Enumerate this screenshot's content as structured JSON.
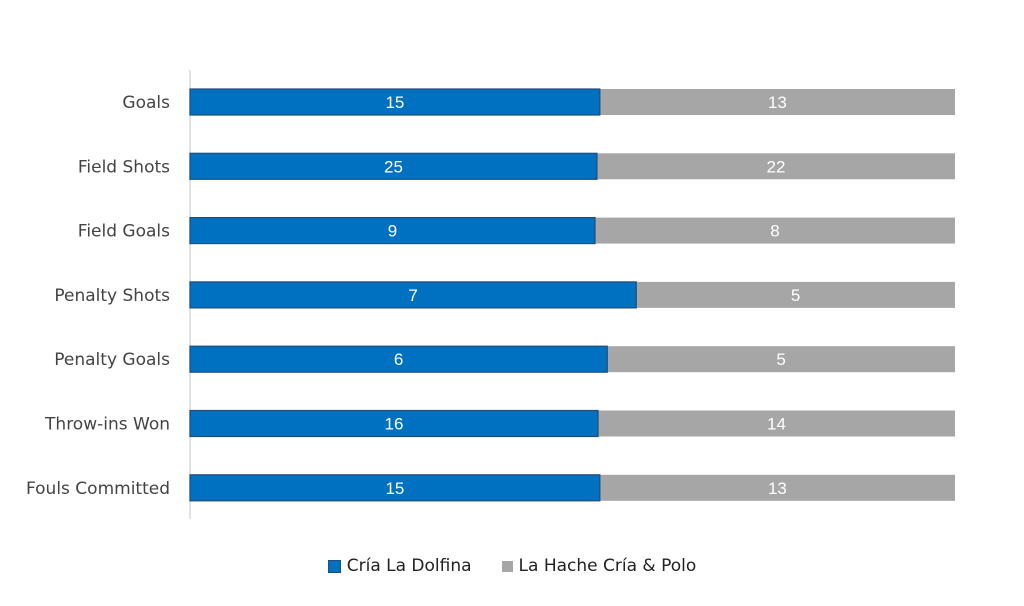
{
  "chart_data": {
    "type": "bar",
    "orientation": "horizontal",
    "stacking": "100% stacked",
    "categories": [
      "Goals",
      "Field Shots",
      "Field Goals",
      "Penalty Shots",
      "Penalty Goals",
      "Throw-ins Won",
      "Fouls Committed"
    ],
    "series": [
      {
        "name": "Cría La Dolfina",
        "values": [
          15,
          25,
          9,
          7,
          6,
          16,
          15
        ],
        "color": "#0070C0"
      },
      {
        "name": "La Hache Cría & Polo",
        "values": [
          13,
          22,
          8,
          5,
          5,
          14,
          13
        ],
        "color": "#A6A6A6"
      }
    ],
    "title": "",
    "xlabel": "",
    "ylabel": "",
    "legend": "bottom",
    "grid": false,
    "data_labels": true
  }
}
